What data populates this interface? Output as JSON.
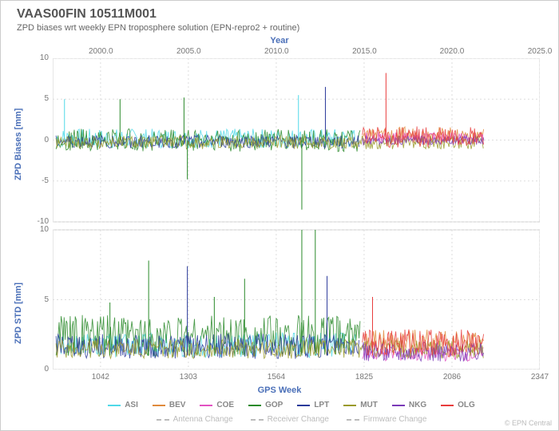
{
  "title": "VAAS00FIN 10511M001",
  "subtitle": "ZPD biases wrt weekly EPN troposphere solution (EPN-repro2 + routine)",
  "topAxisLabel": "Year",
  "bottomAxisLabel": "GPS Week",
  "yLabelTop": "ZPD Biases [mm]",
  "yLabelBottom": "ZPD STD [mm]",
  "credit": "© EPN Central",
  "topPanel": {
    "ylim": [
      -10,
      10
    ],
    "yticks": [
      -10,
      -5,
      0,
      5,
      10
    ]
  },
  "bottomPanel": {
    "ylim": [
      0,
      10
    ],
    "yticks": [
      0,
      5,
      10
    ]
  },
  "xAxis": {
    "gpsWeekRange": [
      900,
      2347
    ],
    "bottomTicks": [
      1042,
      1303,
      1564,
      1825,
      2086,
      2347
    ],
    "topTicks": [
      {
        "week": 1043,
        "label": "2000.0"
      },
      {
        "week": 1304,
        "label": "2005.0"
      },
      {
        "week": 1565,
        "label": "2010.0"
      },
      {
        "week": 1826,
        "label": "2015.0"
      },
      {
        "week": 2086,
        "label": "2020.0"
      },
      {
        "week": 2347,
        "label": "2025.0"
      }
    ]
  },
  "series": [
    {
      "name": "ASI",
      "color": "#4fd9e8",
      "start": 910,
      "end": 1800,
      "biasMean": 0.2,
      "biasNoise": 1.2,
      "stdMean": 1.4,
      "stdNoise": 0.9
    },
    {
      "name": "BEV",
      "color": "#e08a3c",
      "start": 1820,
      "end": 2180,
      "biasMean": 0.6,
      "biasNoise": 1.0,
      "stdMean": 1.6,
      "stdNoise": 0.9
    },
    {
      "name": "COE",
      "color": "#e252c2",
      "start": 1820,
      "end": 2180,
      "biasMean": 0.3,
      "biasNoise": 0.7,
      "stdMean": 0.9,
      "stdNoise": 0.5
    },
    {
      "name": "GOP",
      "color": "#2a8a2a",
      "start": 910,
      "end": 1815,
      "biasMean": 0.0,
      "biasNoise": 1.4,
      "stdMean": 1.8,
      "stdNoise": 1.5
    },
    {
      "name": "LPT",
      "color": "#2a3a9a",
      "start": 910,
      "end": 1810,
      "biasMean": -0.2,
      "biasNoise": 0.8,
      "stdMean": 1.3,
      "stdNoise": 0.9
    },
    {
      "name": "MUT",
      "color": "#9a9a2a",
      "start": 910,
      "end": 2180,
      "biasMean": -0.3,
      "biasNoise": 0.8,
      "stdMean": 1.2,
      "stdNoise": 0.7
    },
    {
      "name": "NKG",
      "color": "#7a3ab8",
      "start": 1820,
      "end": 2180,
      "biasMean": 0.0,
      "biasNoise": 0.6,
      "stdMean": 1.0,
      "stdNoise": 0.7
    },
    {
      "name": "OLG",
      "color": "#e83c3c",
      "start": 1820,
      "end": 2180,
      "biasMean": 0.4,
      "biasNoise": 1.3,
      "stdMean": 1.5,
      "stdNoise": 1.0
    }
  ],
  "spikes": {
    "bias": [
      {
        "week": 935,
        "val": 5.0,
        "color": "#4fd9e8"
      },
      {
        "week": 1100,
        "val": 5.0,
        "color": "#2a8a2a"
      },
      {
        "week": 1290,
        "val": 5.2,
        "color": "#2a8a2a"
      },
      {
        "week": 1300,
        "val": -4.8,
        "color": "#2a8a2a"
      },
      {
        "week": 1630,
        "val": 5.5,
        "color": "#4fd9e8"
      },
      {
        "week": 1640,
        "val": -8.5,
        "color": "#2a8a2a"
      },
      {
        "week": 1710,
        "val": 6.5,
        "color": "#2a3a9a"
      },
      {
        "week": 1890,
        "val": 8.2,
        "color": "#e83c3c"
      }
    ],
    "std": [
      {
        "week": 1070,
        "val": 4.8,
        "color": "#2a8a2a"
      },
      {
        "week": 1185,
        "val": 7.8,
        "color": "#2a8a2a"
      },
      {
        "week": 1300,
        "val": 7.4,
        "color": "#2a3a9a"
      },
      {
        "week": 1380,
        "val": 5.2,
        "color": "#2a8a2a"
      },
      {
        "week": 1470,
        "val": 6.5,
        "color": "#2a8a2a"
      },
      {
        "week": 1640,
        "val": 10.0,
        "color": "#2a8a2a"
      },
      {
        "week": 1680,
        "val": 10.0,
        "color": "#2a8a2a"
      },
      {
        "week": 1715,
        "val": 6.7,
        "color": "#2a3a9a"
      },
      {
        "week": 1850,
        "val": 5.2,
        "color": "#e83c3c"
      }
    ]
  },
  "changeLegend": [
    "Antenna Change",
    "Receiver Change",
    "Firmware Change"
  ],
  "colors": {
    "background": "#ffffff",
    "plotBg": "#ffffff",
    "grid": "#dddddd",
    "axisText": "#888888",
    "axisLabel": "#4a6fb8"
  }
}
